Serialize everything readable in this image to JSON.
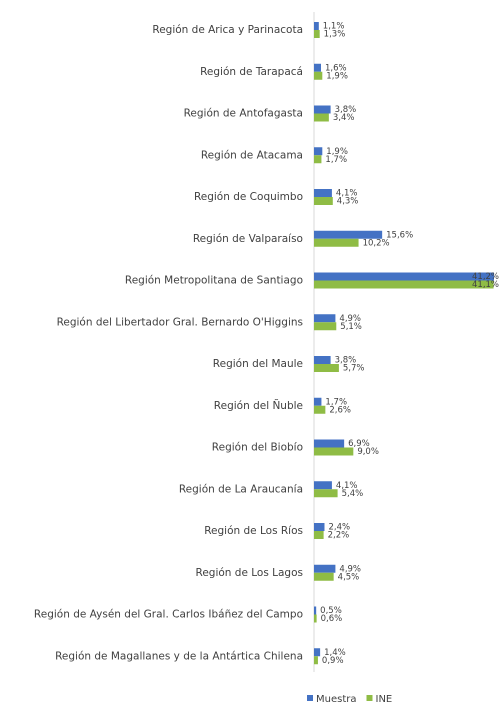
{
  "chart_data": {
    "type": "bar",
    "orientation": "horizontal",
    "categories": [
      "Región de Arica y Parinacota",
      "Región de Tarapacá",
      "Región de Antofagasta",
      "Región de Atacama",
      "Región de Coquimbo",
      "Región de Valparaíso",
      "Región Metropolitana de Santiago",
      "Región del Libertador Gral. Bernardo O'Higgins",
      "Región del Maule",
      "Región del Ñuble",
      "Región del Biobío",
      "Región de La Araucanía",
      "Región de Los Ríos",
      "Región de Los Lagos",
      "Región de Aysén del Gral. Carlos Ibáñez del Campo",
      "Región de Magallanes y de la Antártica Chilena"
    ],
    "series": [
      {
        "name": "Muestra",
        "color": "#4472c4",
        "values": [
          1.1,
          1.6,
          3.8,
          1.9,
          4.1,
          15.6,
          41.2,
          4.9,
          3.8,
          1.7,
          6.9,
          4.1,
          2.4,
          4.9,
          0.5,
          1.4
        ],
        "value_labels": [
          "1,1%",
          "1,6%",
          "3,8%",
          "1,9%",
          "4,1%",
          "15,6%",
          "41,2%",
          "4,9%",
          "3,8%",
          "1,7%",
          "6,9%",
          "4,1%",
          "2,4%",
          "4,9%",
          "0,5%",
          "1,4%"
        ]
      },
      {
        "name": "INE",
        "color": "#8fbc45",
        "values": [
          1.3,
          1.9,
          3.4,
          1.7,
          4.3,
          10.2,
          41.1,
          5.1,
          5.7,
          2.6,
          9.0,
          5.4,
          2.2,
          4.5,
          0.6,
          0.9
        ],
        "value_labels": [
          "1,3%",
          "1,9%",
          "3,4%",
          "1,7%",
          "4,3%",
          "10,2%",
          "41,1%",
          "5,1%",
          "5,7%",
          "2,6%",
          "9,0%",
          "5,4%",
          "2,2%",
          "4,5%",
          "0,6%",
          "0,9%"
        ]
      }
    ],
    "legend": "bottom"
  }
}
